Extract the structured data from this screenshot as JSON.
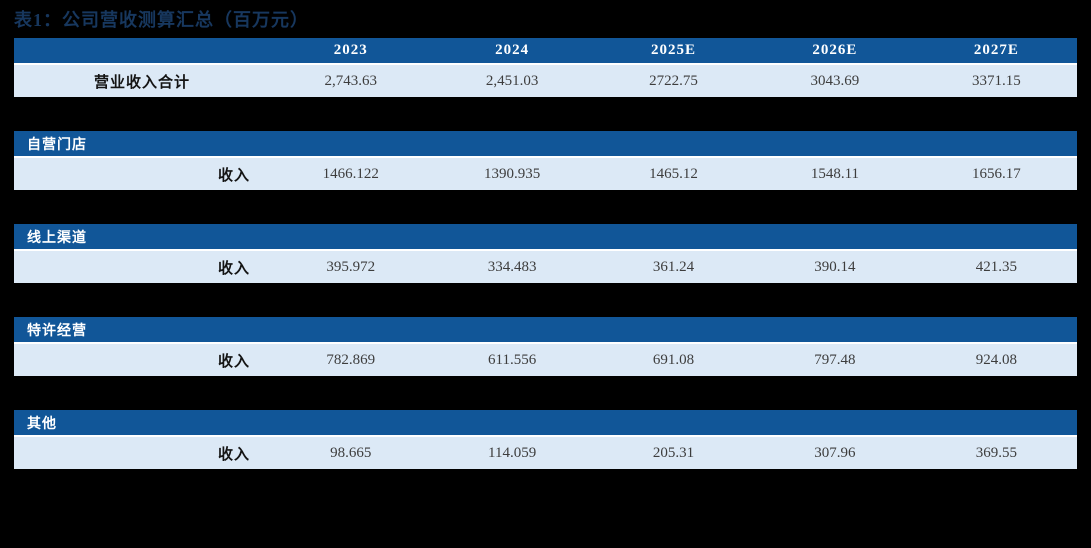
{
  "page": {
    "background_color": "#000000",
    "header_bar_color": "#115698",
    "data_row_color": "#DCE9F6",
    "title_color": "#17375E"
  },
  "title": "表1：公司营收测算汇总（百万元）",
  "table": {
    "year_columns": [
      "2023",
      "2024",
      "2025E",
      "2026E",
      "2027E"
    ],
    "summary_row": {
      "label": "营业收入合计",
      "values": [
        "2,743.63",
        "2,451.03",
        "2722.75",
        "3043.69",
        "3371.15"
      ]
    },
    "sections": [
      {
        "name": "自营门店",
        "row_label": "收入",
        "values": [
          "1466.122",
          "1390.935",
          "1465.12",
          "1548.11",
          "1656.17"
        ]
      },
      {
        "name": "线上渠道",
        "row_label": "收入",
        "values": [
          "395.972",
          "334.483",
          "361.24",
          "390.14",
          "421.35"
        ]
      },
      {
        "name": "特许经营",
        "row_label": "收入",
        "values": [
          "782.869",
          "611.556",
          "691.08",
          "797.48",
          "924.08"
        ]
      },
      {
        "name": "其他",
        "row_label": "收入",
        "values": [
          "98.665",
          "114.059",
          "205.31",
          "307.96",
          "369.55"
        ]
      }
    ]
  },
  "chart_data": {
    "type": "table",
    "title": "公司营收测算汇总（百万元）",
    "categories": [
      "2023",
      "2024",
      "2025E",
      "2026E",
      "2027E"
    ],
    "series": [
      {
        "name": "营业收入合计",
        "values": [
          2743.63,
          2451.03,
          2722.75,
          3043.69,
          3371.15
        ]
      },
      {
        "name": "自营门店-收入",
        "values": [
          1466.122,
          1390.935,
          1465.12,
          1548.11,
          1656.17
        ]
      },
      {
        "name": "线上渠道-收入",
        "values": [
          395.972,
          334.483,
          361.24,
          390.14,
          421.35
        ]
      },
      {
        "name": "特许经营-收入",
        "values": [
          782.869,
          611.556,
          691.08,
          797.48,
          924.08
        ]
      },
      {
        "name": "其他-收入",
        "values": [
          98.665,
          114.059,
          205.31,
          307.96,
          369.55
        ]
      }
    ]
  }
}
